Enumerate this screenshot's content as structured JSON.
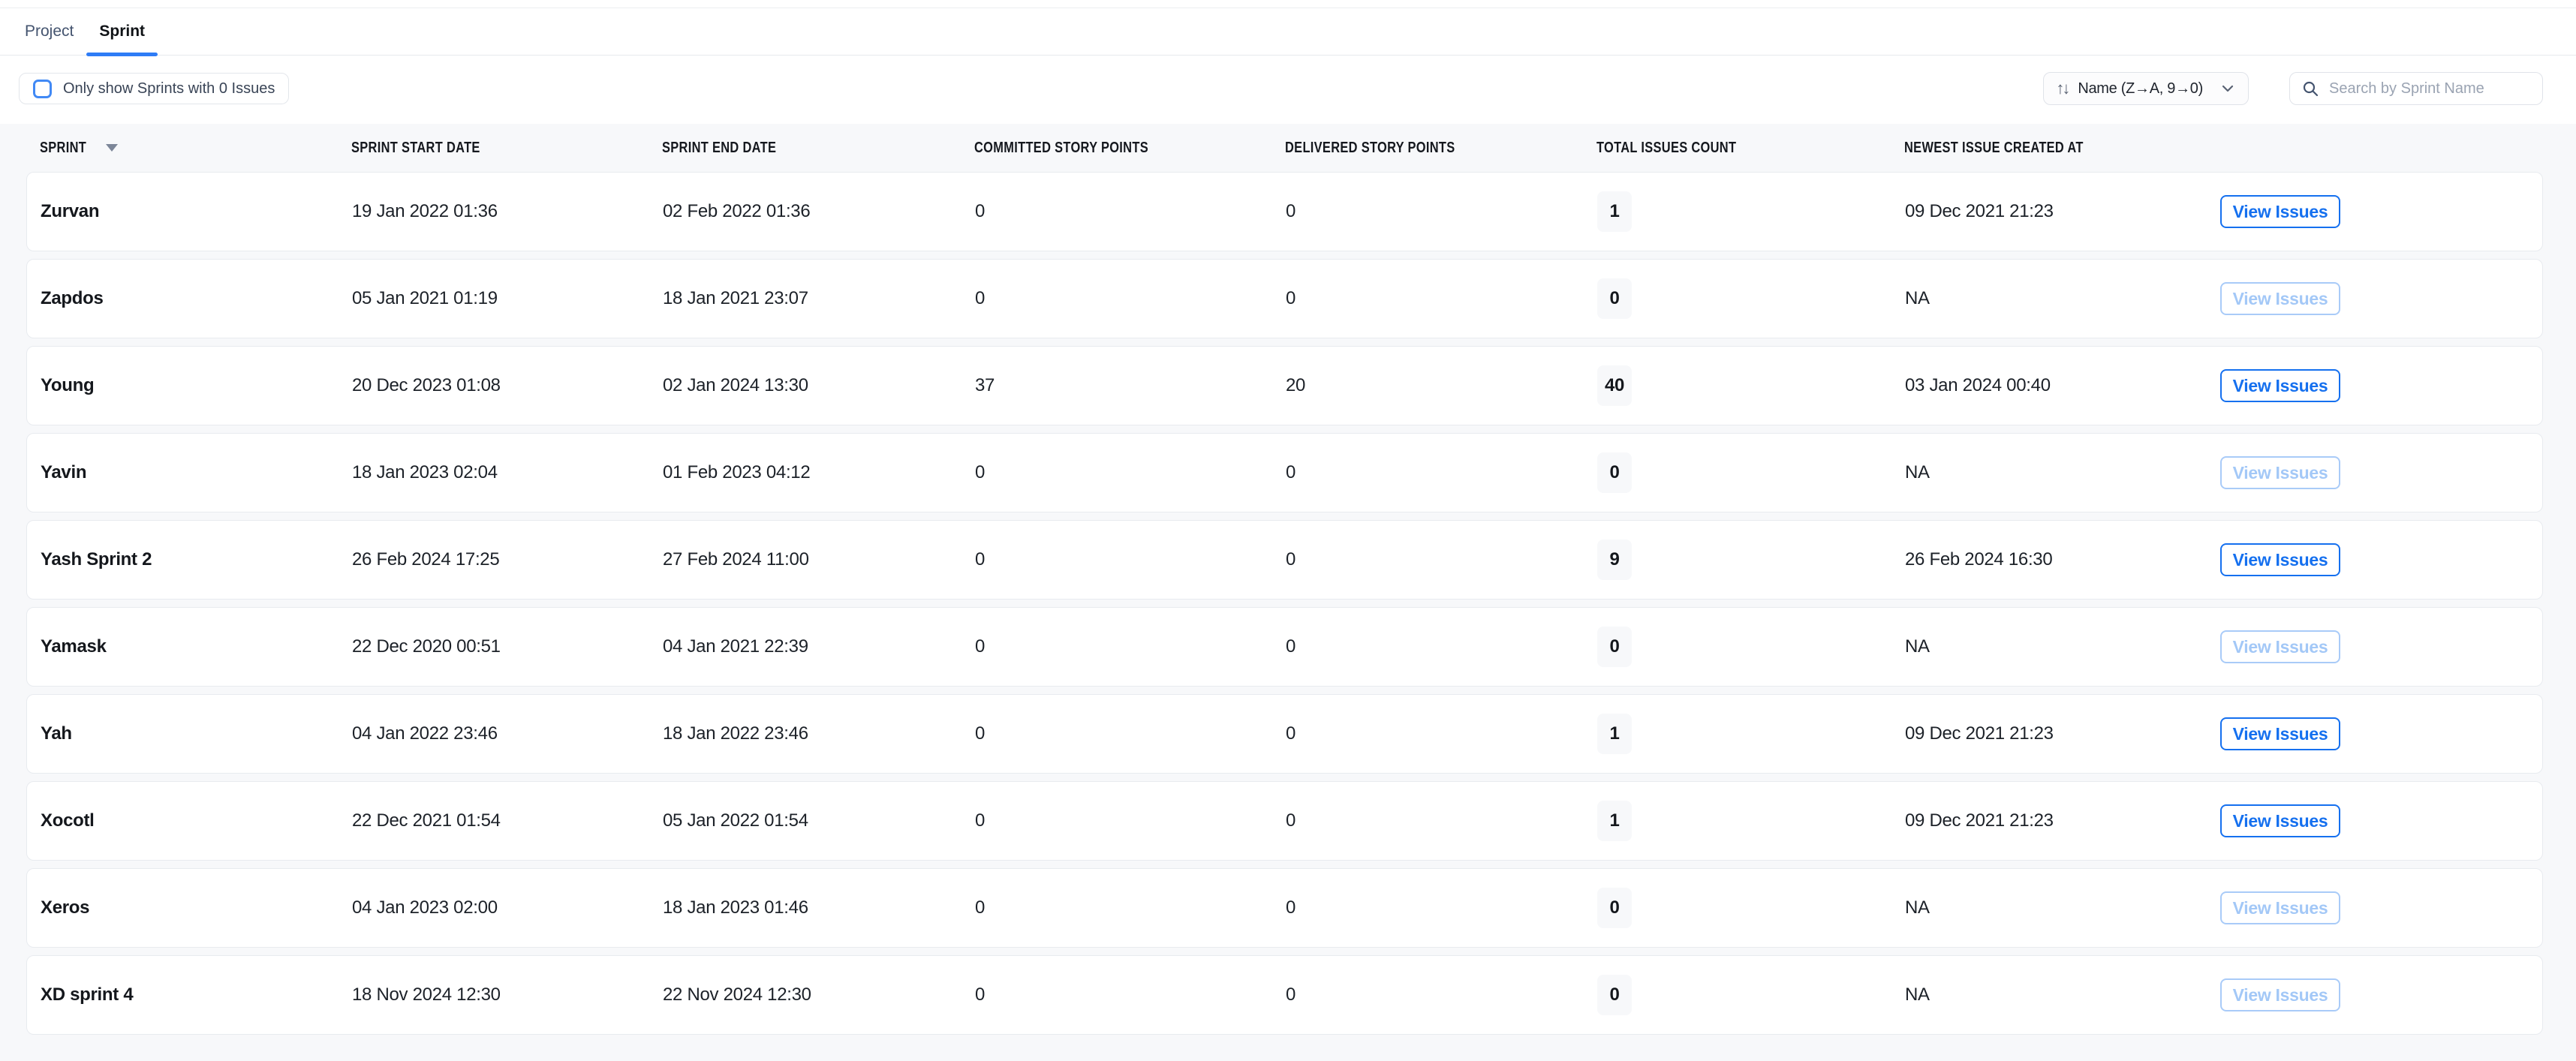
{
  "tabs": {
    "project": "Project",
    "sprint": "Sprint",
    "active": "Sprint"
  },
  "filter": {
    "label": "Only show Sprints with 0 Issues",
    "checked": false
  },
  "sort": {
    "label": "Name (Z→A, 9→0)"
  },
  "search": {
    "placeholder": "Search by Sprint Name",
    "value": ""
  },
  "table": {
    "columns": [
      "SPRINT",
      "SPRINT START DATE",
      "SPRINT END DATE",
      "COMMITTED STORY POINTS",
      "DELIVERED STORY POINTS",
      "TOTAL ISSUES COUNT",
      "NEWEST ISSUE CREATED AT"
    ],
    "sorted_column": "SPRINT",
    "sort_direction": "desc",
    "view_issues_label": "View Issues",
    "rows": [
      {
        "name": "Zurvan",
        "start": "19 Jan 2022 01:36",
        "end": "02 Feb 2022 01:36",
        "committed": "0",
        "delivered": "0",
        "total": "1",
        "newest": "09 Dec 2021 21:23",
        "view_enabled": true
      },
      {
        "name": "Zapdos",
        "start": "05 Jan 2021 01:19",
        "end": "18 Jan 2021 23:07",
        "committed": "0",
        "delivered": "0",
        "total": "0",
        "newest": "NA",
        "view_enabled": false
      },
      {
        "name": "Young",
        "start": "20 Dec 2023 01:08",
        "end": "02 Jan 2024 13:30",
        "committed": "37",
        "delivered": "20",
        "total": "40",
        "newest": "03 Jan 2024 00:40",
        "view_enabled": true
      },
      {
        "name": "Yavin",
        "start": "18 Jan 2023 02:04",
        "end": "01 Feb 2023 04:12",
        "committed": "0",
        "delivered": "0",
        "total": "0",
        "newest": "NA",
        "view_enabled": false
      },
      {
        "name": "Yash Sprint 2",
        "start": "26 Feb 2024 17:25",
        "end": "27 Feb 2024 11:00",
        "committed": "0",
        "delivered": "0",
        "total": "9",
        "newest": "26 Feb 2024 16:30",
        "view_enabled": true
      },
      {
        "name": "Yamask",
        "start": "22 Dec 2020 00:51",
        "end": "04 Jan 2021 22:39",
        "committed": "0",
        "delivered": "0",
        "total": "0",
        "newest": "NA",
        "view_enabled": false
      },
      {
        "name": "Yah",
        "start": "04 Jan 2022 23:46",
        "end": "18 Jan 2022 23:46",
        "committed": "0",
        "delivered": "0",
        "total": "1",
        "newest": "09 Dec 2021 21:23",
        "view_enabled": true
      },
      {
        "name": "Xocotl",
        "start": "22 Dec 2021 01:54",
        "end": "05 Jan 2022 01:54",
        "committed": "0",
        "delivered": "0",
        "total": "1",
        "newest": "09 Dec 2021 21:23",
        "view_enabled": true
      },
      {
        "name": "Xeros",
        "start": "04 Jan 2023 02:00",
        "end": "18 Jan 2023 01:46",
        "committed": "0",
        "delivered": "0",
        "total": "0",
        "newest": "NA",
        "view_enabled": false
      },
      {
        "name": "XD sprint 4",
        "start": "18 Nov 2024 12:30",
        "end": "22 Nov 2024 12:30",
        "committed": "0",
        "delivered": "0",
        "total": "0",
        "newest": "NA",
        "view_enabled": false
      }
    ]
  },
  "colors": {
    "accent_blue": "#1570ef",
    "tab_underline": "#2e7cf6",
    "checkbox_blue": "#4189f5",
    "disabled_blue": "#a3c8f7",
    "table_background": "#f7f8fa",
    "card_border": "#e8ebef",
    "text_dark": "#14171c",
    "text_muted": "#44546f",
    "placeholder": "#9aa3b2"
  }
}
